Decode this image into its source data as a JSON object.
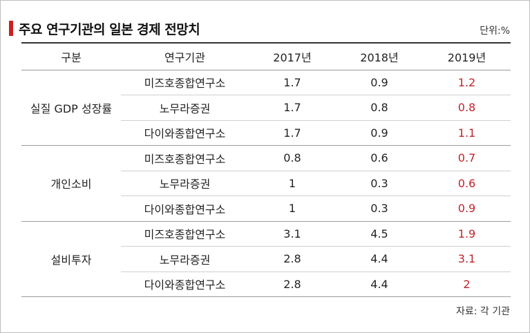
{
  "title": "주요 연구기관의 일본 경제 전망치",
  "unit": "단위:%",
  "source": "자료: 각 기관",
  "colors": {
    "accent": "#cc1f1f",
    "highlight": "#c0232a"
  },
  "table": {
    "headers": [
      "구분",
      "연구기관",
      "2017년",
      "2018년",
      "2019년"
    ],
    "groups": [
      {
        "name": "실질 GDP 성장률",
        "rows": [
          {
            "inst": "미즈호종합연구소",
            "y2017": "1.7",
            "y2018": "0.9",
            "y2019": "1.2"
          },
          {
            "inst": "노무라증권",
            "y2017": "1.7",
            "y2018": "0.8",
            "y2019": "0.8"
          },
          {
            "inst": "다이와종합연구소",
            "y2017": "1.7",
            "y2018": "0.9",
            "y2019": "1.1"
          }
        ]
      },
      {
        "name": "개인소비",
        "rows": [
          {
            "inst": "미즈호종합연구소",
            "y2017": "0.8",
            "y2018": "0.6",
            "y2019": "0.7"
          },
          {
            "inst": "노무라증권",
            "y2017": "1",
            "y2018": "0.3",
            "y2019": "0.6"
          },
          {
            "inst": "다이와종합연구소",
            "y2017": "1",
            "y2018": "0.3",
            "y2019": "0.9"
          }
        ]
      },
      {
        "name": "설비투자",
        "rows": [
          {
            "inst": "미즈호종합연구소",
            "y2017": "3.1",
            "y2018": "4.5",
            "y2019": "1.9"
          },
          {
            "inst": "노무라증권",
            "y2017": "2.8",
            "y2018": "4.4",
            "y2019": "3.1"
          },
          {
            "inst": "다이와종합연구소",
            "y2017": "2.8",
            "y2018": "4.4",
            "y2019": "2"
          }
        ]
      }
    ]
  }
}
